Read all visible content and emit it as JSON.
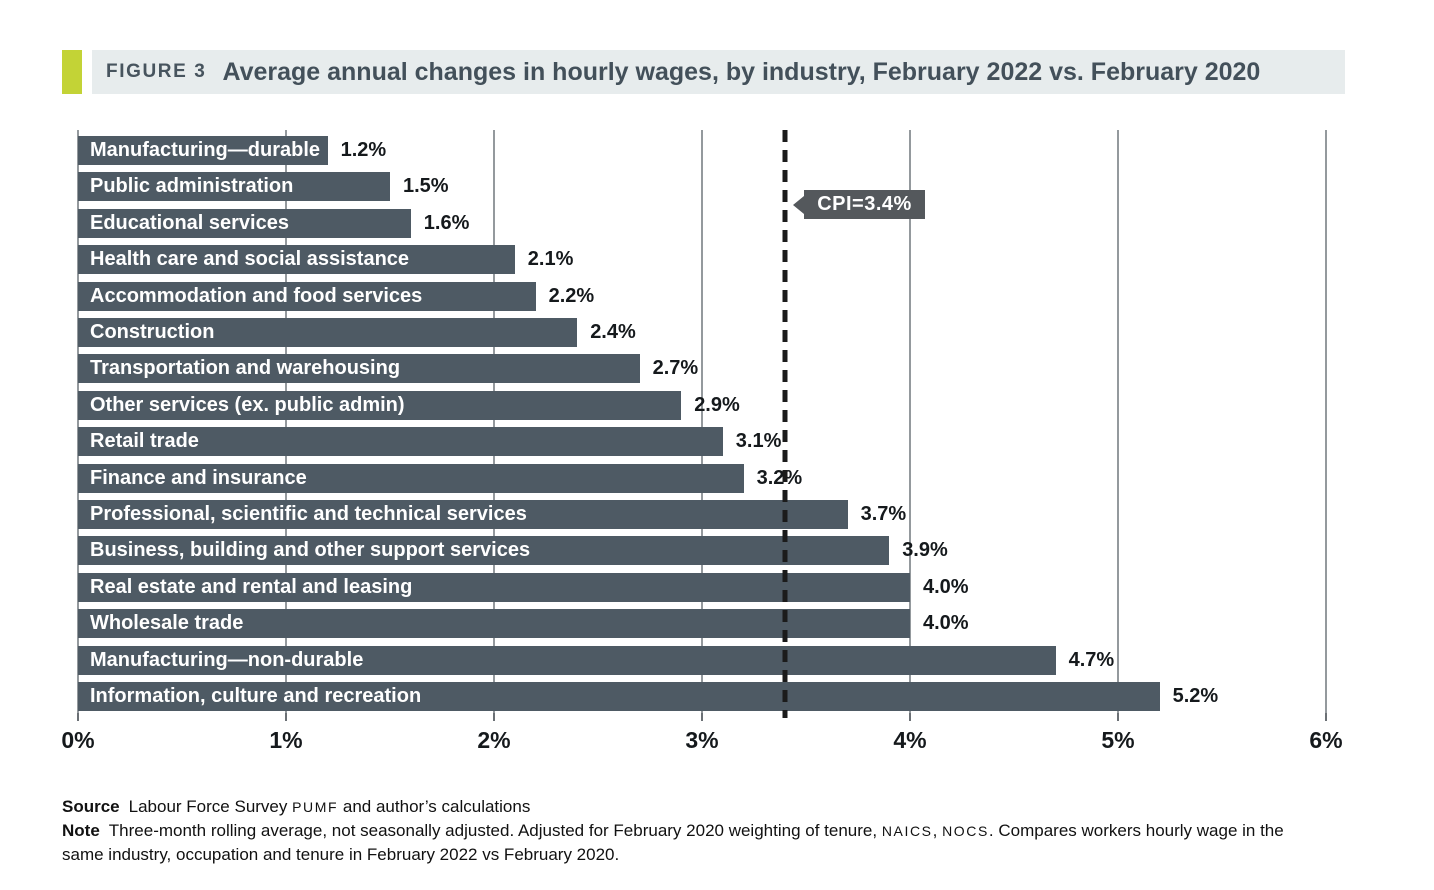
{
  "header": {
    "figure_label": "FIGURE 3",
    "title": "Average annual changes in hourly wages, by industry, February 2022 vs. February 2020"
  },
  "chart_data": {
    "type": "bar",
    "orientation": "horizontal",
    "title": "Average annual changes in hourly wages, by industry, February 2022 vs. February 2020",
    "categories": [
      "Manufacturing—durable",
      "Public administration",
      "Educational services",
      "Health care and social assistance",
      "Accommodation and food services",
      "Construction",
      "Transportation and warehousing",
      "Other services (ex. public admin)",
      "Retail trade",
      "Finance and insurance",
      "Professional, scientific and technical services",
      "Business, building and other support services",
      "Real estate and rental and leasing",
      "Wholesale trade",
      "Manufacturing—non-durable",
      "Information, culture and recreation"
    ],
    "values": [
      1.2,
      1.5,
      1.6,
      2.1,
      2.2,
      2.4,
      2.7,
      2.9,
      3.1,
      3.2,
      3.7,
      3.9,
      4.0,
      4.0,
      4.7,
      5.2
    ],
    "value_labels": [
      "1.2%",
      "1.5%",
      "1.6%",
      "2.1%",
      "2.2%",
      "2.4%",
      "2.7%",
      "2.9%",
      "3.1%",
      "3.2%",
      "3.7%",
      "3.9%",
      "4.0%",
      "4.0%",
      "4.7%",
      "5.2%"
    ],
    "xlabel": "",
    "ylabel": "",
    "xlim": [
      0,
      6
    ],
    "x_ticks": [
      0,
      1,
      2,
      3,
      4,
      5,
      6
    ],
    "x_tick_labels": [
      "0%",
      "1%",
      "2%",
      "3%",
      "4%",
      "5%",
      "6%"
    ],
    "grid": true,
    "legend": false,
    "reference_line": {
      "value": 3.4,
      "label": "CPI=3.4%",
      "style": "dashed"
    }
  },
  "footer": {
    "source_label": "Source",
    "source_text_1": "Labour Force Survey ",
    "source_acronym": "PUMF",
    "source_text_2": " and author’s calculations",
    "note_label": "Note",
    "note_text_1": "Three-month rolling average, not seasonally adjusted. Adjusted for February 2020 weighting of tenure, ",
    "note_acronym_1": "NAICS",
    "note_text_2": ", ",
    "note_acronym_2": "NOCS",
    "note_text_3": ". Compares workers hourly wage in the same industry, occupation and tenure in February 2022 vs February 2020."
  },
  "colors": {
    "accent_green": "#c3d336",
    "header_strip": "#e7eced",
    "bar": "#4e5a64",
    "cpi_tag": "#54585c",
    "gridline": "#94999d",
    "reference_line": "#1b1b1b"
  }
}
